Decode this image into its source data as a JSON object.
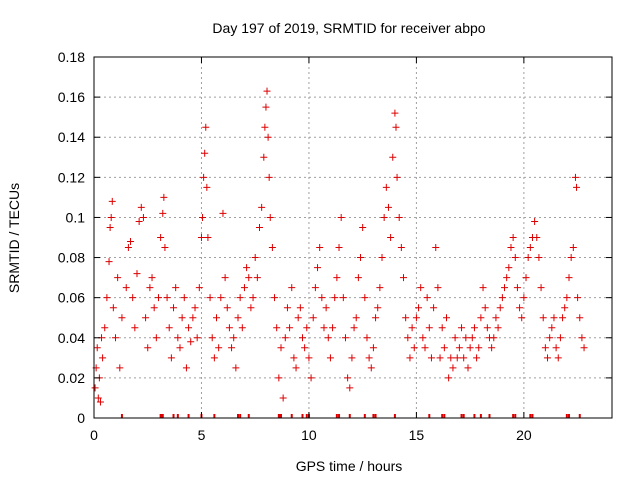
{
  "chart_data": {
    "type": "scatter",
    "title": "Day 197 of 2019, SRMTID for receiver abpo",
    "xlabel": "GPS time / hours",
    "ylabel": "SRMTID / TECUs",
    "xlim": [
      0,
      24.1
    ],
    "ylim": [
      0,
      0.18
    ],
    "x_ticks": [
      0,
      5,
      10,
      15,
      20
    ],
    "y_ticks": [
      0,
      0.02,
      0.04,
      0.06,
      0.08,
      0.1,
      0.12,
      0.14,
      0.16,
      0.18
    ],
    "x_tick_labels": [
      "0",
      "5",
      "10",
      "15",
      "20"
    ],
    "y_tick_labels": [
      "0",
      "0.02",
      "0.04",
      "0.06",
      "0.08",
      "0.1",
      "0.12",
      "0.14",
      "0.16",
      "0.18"
    ],
    "grid": true,
    "marker": "plus",
    "color": "#dd0000",
    "series": [
      {
        "name": "SRMTID",
        "points": [
          [
            0.05,
            0.015
          ],
          [
            0.1,
            0.025
          ],
          [
            0.15,
            0.035
          ],
          [
            0.2,
            0.01
          ],
          [
            0.25,
            0.02
          ],
          [
            0.3,
            0.008
          ],
          [
            0.35,
            0.04
          ],
          [
            0.4,
            0.03
          ],
          [
            0.5,
            0.045
          ],
          [
            0.6,
            0.06
          ],
          [
            0.7,
            0.078
          ],
          [
            0.75,
            0.095
          ],
          [
            0.8,
            0.1
          ],
          [
            0.85,
            0.108
          ],
          [
            0.9,
            0.055
          ],
          [
            1.0,
            0.04
          ],
          [
            1.1,
            0.07
          ],
          [
            1.2,
            0.025
          ],
          [
            1.3,
            0.05
          ],
          [
            1.5,
            0.065
          ],
          [
            1.6,
            0.085
          ],
          [
            1.7,
            0.088
          ],
          [
            1.8,
            0.06
          ],
          [
            1.9,
            0.045
          ],
          [
            2.0,
            0.072
          ],
          [
            2.1,
            0.098
          ],
          [
            2.2,
            0.105
          ],
          [
            2.3,
            0.1
          ],
          [
            2.4,
            0.05
          ],
          [
            2.5,
            0.035
          ],
          [
            2.6,
            0.065
          ],
          [
            2.7,
            0.07
          ],
          [
            2.8,
            0.055
          ],
          [
            2.9,
            0.04
          ],
          [
            3.0,
            0.06
          ],
          [
            3.1,
            0.09
          ],
          [
            3.2,
            0.102
          ],
          [
            3.25,
            0.11
          ],
          [
            3.3,
            0.085
          ],
          [
            3.4,
            0.06
          ],
          [
            3.5,
            0.045
          ],
          [
            3.6,
            0.03
          ],
          [
            3.7,
            0.055
          ],
          [
            3.8,
            0.065
          ],
          [
            3.9,
            0.04
          ],
          [
            4.0,
            0.035
          ],
          [
            4.1,
            0.05
          ],
          [
            4.2,
            0.06
          ],
          [
            4.3,
            0.025
          ],
          [
            4.4,
            0.045
          ],
          [
            4.5,
            0.038
          ],
          [
            4.6,
            0.05
          ],
          [
            4.7,
            0.055
          ],
          [
            4.8,
            0.04
          ],
          [
            4.9,
            0.065
          ],
          [
            5.0,
            0.09
          ],
          [
            5.05,
            0.1
          ],
          [
            5.1,
            0.12
          ],
          [
            5.15,
            0.132
          ],
          [
            5.2,
            0.145
          ],
          [
            5.25,
            0.115
          ],
          [
            5.3,
            0.09
          ],
          [
            5.4,
            0.06
          ],
          [
            5.5,
            0.04
          ],
          [
            5.6,
            0.03
          ],
          [
            5.7,
            0.05
          ],
          [
            5.8,
            0.035
          ],
          [
            5.9,
            0.06
          ],
          [
            6.0,
            0.102
          ],
          [
            6.1,
            0.07
          ],
          [
            6.2,
            0.055
          ],
          [
            6.3,
            0.045
          ],
          [
            6.4,
            0.035
          ],
          [
            6.5,
            0.04
          ],
          [
            6.6,
            0.025
          ],
          [
            6.7,
            0.05
          ],
          [
            6.8,
            0.06
          ],
          [
            6.9,
            0.045
          ],
          [
            7.0,
            0.065
          ],
          [
            7.1,
            0.075
          ],
          [
            7.2,
            0.07
          ],
          [
            7.3,
            0.055
          ],
          [
            7.4,
            0.06
          ],
          [
            7.5,
            0.08
          ],
          [
            7.6,
            0.07
          ],
          [
            7.7,
            0.095
          ],
          [
            7.8,
            0.105
          ],
          [
            7.9,
            0.13
          ],
          [
            7.95,
            0.145
          ],
          [
            8.0,
            0.155
          ],
          [
            8.05,
            0.163
          ],
          [
            8.1,
            0.14
          ],
          [
            8.15,
            0.12
          ],
          [
            8.2,
            0.1
          ],
          [
            8.3,
            0.085
          ],
          [
            8.4,
            0.06
          ],
          [
            8.5,
            0.045
          ],
          [
            8.6,
            0.02
          ],
          [
            8.7,
            0.035
          ],
          [
            8.8,
            0.01
          ],
          [
            8.9,
            0.04
          ],
          [
            9.0,
            0.055
          ],
          [
            9.1,
            0.045
          ],
          [
            9.2,
            0.065
          ],
          [
            9.3,
            0.03
          ],
          [
            9.4,
            0.025
          ],
          [
            9.5,
            0.05
          ],
          [
            9.6,
            0.055
          ],
          [
            9.7,
            0.04
          ],
          [
            9.8,
            0.035
          ],
          [
            9.9,
            0.045
          ],
          [
            10.0,
            0.03
          ],
          [
            10.1,
            0.02
          ],
          [
            10.2,
            0.05
          ],
          [
            10.3,
            0.065
          ],
          [
            10.4,
            0.075
          ],
          [
            10.5,
            0.085
          ],
          [
            10.6,
            0.06
          ],
          [
            10.7,
            0.045
          ],
          [
            10.8,
            0.055
          ],
          [
            10.9,
            0.04
          ],
          [
            11.0,
            0.03
          ],
          [
            11.1,
            0.045
          ],
          [
            11.2,
            0.06
          ],
          [
            11.3,
            0.07
          ],
          [
            11.4,
            0.085
          ],
          [
            11.5,
            0.1
          ],
          [
            11.6,
            0.06
          ],
          [
            11.7,
            0.04
          ],
          [
            11.8,
            0.02
          ],
          [
            11.9,
            0.015
          ],
          [
            12.0,
            0.03
          ],
          [
            12.1,
            0.045
          ],
          [
            12.2,
            0.05
          ],
          [
            12.3,
            0.07
          ],
          [
            12.4,
            0.08
          ],
          [
            12.5,
            0.095
          ],
          [
            12.6,
            0.06
          ],
          [
            12.7,
            0.04
          ],
          [
            12.8,
            0.03
          ],
          [
            12.9,
            0.025
          ],
          [
            13.0,
            0.035
          ],
          [
            13.1,
            0.05
          ],
          [
            13.2,
            0.055
          ],
          [
            13.3,
            0.065
          ],
          [
            13.4,
            0.08
          ],
          [
            13.5,
            0.1
          ],
          [
            13.6,
            0.115
          ],
          [
            13.7,
            0.105
          ],
          [
            13.8,
            0.09
          ],
          [
            13.9,
            0.13
          ],
          [
            14.0,
            0.152
          ],
          [
            14.05,
            0.145
          ],
          [
            14.1,
            0.12
          ],
          [
            14.2,
            0.1
          ],
          [
            14.3,
            0.085
          ],
          [
            14.4,
            0.07
          ],
          [
            14.5,
            0.05
          ],
          [
            14.6,
            0.04
          ],
          [
            14.7,
            0.03
          ],
          [
            14.8,
            0.045
          ],
          [
            14.9,
            0.035
          ],
          [
            15.0,
            0.05
          ],
          [
            15.1,
            0.055
          ],
          [
            15.2,
            0.065
          ],
          [
            15.3,
            0.04
          ],
          [
            15.4,
            0.035
          ],
          [
            15.5,
            0.06
          ],
          [
            15.6,
            0.045
          ],
          [
            15.7,
            0.03
          ],
          [
            15.8,
            0.055
          ],
          [
            15.9,
            0.085
          ],
          [
            16.0,
            0.065
          ],
          [
            16.1,
            0.03
          ],
          [
            16.2,
            0.045
          ],
          [
            16.3,
            0.035
          ],
          [
            16.4,
            0.05
          ],
          [
            16.5,
            0.02
          ],
          [
            16.6,
            0.03
          ],
          [
            16.7,
            0.025
          ],
          [
            16.8,
            0.04
          ],
          [
            16.9,
            0.03
          ],
          [
            17.0,
            0.035
          ],
          [
            17.1,
            0.045
          ],
          [
            17.2,
            0.03
          ],
          [
            17.3,
            0.04
          ],
          [
            17.4,
            0.025
          ],
          [
            17.5,
            0.035
          ],
          [
            17.6,
            0.04
          ],
          [
            17.7,
            0.045
          ],
          [
            17.8,
            0.03
          ],
          [
            17.9,
            0.035
          ],
          [
            18.0,
            0.05
          ],
          [
            18.1,
            0.065
          ],
          [
            18.2,
            0.055
          ],
          [
            18.3,
            0.045
          ],
          [
            18.4,
            0.04
          ],
          [
            18.5,
            0.035
          ],
          [
            18.6,
            0.04
          ],
          [
            18.7,
            0.05
          ],
          [
            18.8,
            0.045
          ],
          [
            18.9,
            0.055
          ],
          [
            19.0,
            0.06
          ],
          [
            19.1,
            0.065
          ],
          [
            19.2,
            0.07
          ],
          [
            19.3,
            0.075
          ],
          [
            19.4,
            0.085
          ],
          [
            19.5,
            0.09
          ],
          [
            19.6,
            0.08
          ],
          [
            19.7,
            0.065
          ],
          [
            19.8,
            0.055
          ],
          [
            19.9,
            0.05
          ],
          [
            20.0,
            0.06
          ],
          [
            20.1,
            0.07
          ],
          [
            20.2,
            0.08
          ],
          [
            20.3,
            0.085
          ],
          [
            20.4,
            0.09
          ],
          [
            20.5,
            0.098
          ],
          [
            20.6,
            0.09
          ],
          [
            20.7,
            0.08
          ],
          [
            20.8,
            0.065
          ],
          [
            20.9,
            0.05
          ],
          [
            21.0,
            0.035
          ],
          [
            21.1,
            0.03
          ],
          [
            21.2,
            0.04
          ],
          [
            21.3,
            0.045
          ],
          [
            21.4,
            0.05
          ],
          [
            21.5,
            0.035
          ],
          [
            21.6,
            0.03
          ],
          [
            21.7,
            0.04
          ],
          [
            21.8,
            0.05
          ],
          [
            21.9,
            0.055
          ],
          [
            22.0,
            0.06
          ],
          [
            22.1,
            0.07
          ],
          [
            22.2,
            0.08
          ],
          [
            22.3,
            0.085
          ],
          [
            22.4,
            0.12
          ],
          [
            22.45,
            0.115
          ],
          [
            22.5,
            0.06
          ],
          [
            22.6,
            0.05
          ],
          [
            22.7,
            0.04
          ],
          [
            22.8,
            0.035
          ]
        ]
      }
    ],
    "zero_markers_x": [
      1.3,
      3.1,
      3.15,
      3.2,
      3.7,
      3.9,
      4.4,
      5.0,
      5.6,
      6.7,
      6.8,
      7.2,
      8.6,
      8.65,
      8.7,
      9.2,
      9.7,
      9.9,
      10.0,
      11.3,
      11.4,
      11.9,
      12.6,
      13.0,
      13.1,
      14.0,
      15.6,
      16.2,
      16.3,
      17.1,
      17.2,
      17.7,
      18.0,
      18.4,
      19.5,
      19.6,
      20.3,
      20.4,
      22.0,
      22.1,
      22.6
    ]
  }
}
